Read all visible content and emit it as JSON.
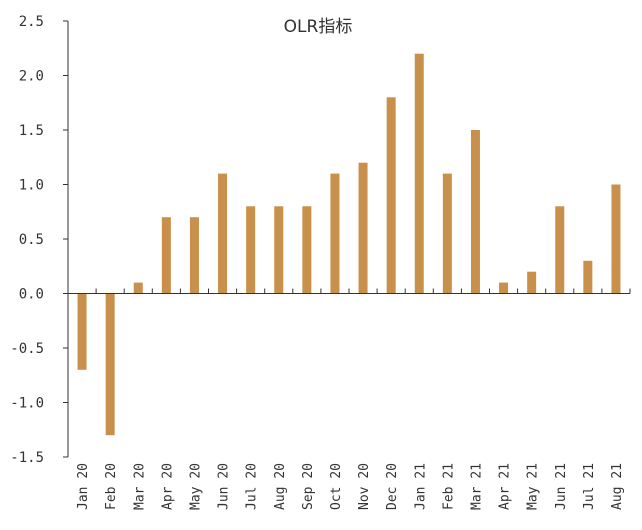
{
  "chart_data": {
    "type": "bar",
    "title": "OLR指标",
    "xlabel": "",
    "ylabel": "",
    "ylim": [
      -1.5,
      2.5
    ],
    "yticks": [
      -1.5,
      -1.0,
      -0.5,
      0.0,
      0.5,
      1.0,
      1.5,
      2.0,
      2.5
    ],
    "ytick_labels": [
      "-1.5",
      "-1.0",
      "-0.5",
      "0.0",
      "0.5",
      "1.0",
      "1.5",
      "2.0",
      "2.5"
    ],
    "grid": false,
    "categories": [
      "Jan 20",
      "Feb 20",
      "Mar 20",
      "Apr 20",
      "May 20",
      "Jun 20",
      "Jul 20",
      "Aug 20",
      "Sep 20",
      "Oct 20",
      "Nov 20",
      "Dec 20",
      "Jan 21",
      "Feb 21",
      "Mar 21",
      "Apr 21",
      "May 21",
      "Jun 21",
      "Jul 21",
      "Aug 21"
    ],
    "values": [
      -0.7,
      -1.3,
      0.1,
      0.7,
      0.7,
      1.1,
      0.8,
      0.8,
      0.8,
      1.1,
      1.2,
      1.8,
      2.2,
      1.1,
      1.5,
      0.1,
      0.2,
      0.8,
      0.3,
      1.0
    ],
    "bar_color": "#C8904A",
    "axis_color": "#333333"
  }
}
